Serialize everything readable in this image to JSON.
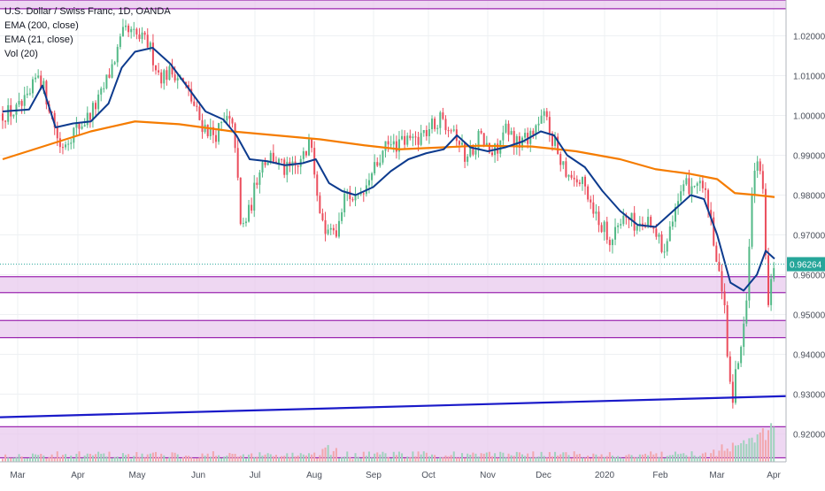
{
  "legend": {
    "title": "U.S. Dollar / Swiss Franc, 1D, OANDA",
    "ema200": "EMA (200, close)",
    "ema21": "EMA (21, close)",
    "vol": "Vol (20)"
  },
  "colors": {
    "up": "#53b987",
    "down": "#eb4d5c",
    "vol_up": "#9fd3bd",
    "vol_down": "#f2a7ae",
    "ema200": "#f57c00",
    "ema21": "#0d3b8e",
    "trendline": "#1a1ac9",
    "zone_fill": "#e8c9ee",
    "zone_border": "#9c27b0",
    "price_label_bg": "#26a69a",
    "grid": "#eef0f3",
    "axis_text": "#4a4f5a"
  },
  "chart_data": {
    "type": "candlestick",
    "title": "U.S. Dollar / Swiss Franc, 1D, OANDA",
    "current_price": "0.96264",
    "ylim": [
      0.913,
      1.029
    ],
    "y_ticks": [
      0.92,
      0.93,
      0.94,
      0.95,
      0.96,
      0.97,
      0.98,
      0.99,
      1.0,
      1.01,
      1.02
    ],
    "y_tick_labels": [
      "0.92000",
      "0.93000",
      "0.94000",
      "0.95000",
      "0.96000",
      "0.97000",
      "0.98000",
      "0.99000",
      "1.00000",
      "1.01000",
      "1.02000"
    ],
    "x_tick_labels": [
      "Mar",
      "Apr",
      "May",
      "Jun",
      "Jul",
      "Aug",
      "Sep",
      "Oct",
      "Nov",
      "Dec",
      "2020",
      "Feb",
      "Mar",
      "Apr"
    ],
    "grid": true,
    "zones": [
      {
        "low": 1.0268,
        "high": 1.029
      },
      {
        "low": 0.9555,
        "high": 0.9595
      },
      {
        "low": 0.9442,
        "high": 0.9485
      },
      {
        "low": 0.914,
        "high": 0.9218
      }
    ],
    "trendline": {
      "start": 0.9242,
      "end": 0.9295
    },
    "ema200": [
      [
        0,
        0.989
      ],
      [
        50,
        0.9925
      ],
      [
        100,
        0.996
      ],
      [
        150,
        0.9985
      ],
      [
        200,
        0.9978
      ],
      [
        260,
        0.996
      ],
      [
        310,
        0.995
      ],
      [
        360,
        0.994
      ],
      [
        410,
        0.9925
      ],
      [
        450,
        0.9915
      ],
      [
        500,
        0.992
      ],
      [
        540,
        0.9924
      ],
      [
        600,
        0.9922
      ],
      [
        650,
        0.991
      ],
      [
        700,
        0.989
      ],
      [
        740,
        0.9865
      ],
      [
        780,
        0.9853
      ],
      [
        810,
        0.984
      ],
      [
        830,
        0.9805
      ],
      [
        855,
        0.98
      ],
      [
        875,
        0.9795
      ]
    ],
    "ema21": [
      [
        0,
        1.001
      ],
      [
        30,
        1.0015
      ],
      [
        45,
        1.0075
      ],
      [
        60,
        0.997
      ],
      [
        80,
        0.998
      ],
      [
        100,
        0.9985
      ],
      [
        120,
        1.003
      ],
      [
        135,
        1.012
      ],
      [
        150,
        1.016
      ],
      [
        170,
        1.017
      ],
      [
        190,
        1.013
      ],
      [
        210,
        1.007
      ],
      [
        230,
        1.001
      ],
      [
        250,
        0.999
      ],
      [
        265,
        0.995
      ],
      [
        280,
        0.989
      ],
      [
        300,
        0.9885
      ],
      [
        320,
        0.9875
      ],
      [
        340,
        0.988
      ],
      [
        355,
        0.989
      ],
      [
        370,
        0.983
      ],
      [
        385,
        0.981
      ],
      [
        400,
        0.98
      ],
      [
        420,
        0.982
      ],
      [
        440,
        0.986
      ],
      [
        460,
        0.989
      ],
      [
        480,
        0.9905
      ],
      [
        500,
        0.9915
      ],
      [
        515,
        0.995
      ],
      [
        530,
        0.992
      ],
      [
        550,
        0.991
      ],
      [
        570,
        0.992
      ],
      [
        590,
        0.9935
      ],
      [
        610,
        0.996
      ],
      [
        625,
        0.995
      ],
      [
        640,
        0.99
      ],
      [
        660,
        0.987
      ],
      [
        680,
        0.981
      ],
      [
        700,
        0.976
      ],
      [
        720,
        0.9725
      ],
      [
        740,
        0.972
      ],
      [
        760,
        0.976
      ],
      [
        780,
        0.98
      ],
      [
        795,
        0.979
      ],
      [
        810,
        0.97
      ],
      [
        825,
        0.958
      ],
      [
        840,
        0.956
      ],
      [
        855,
        0.96
      ],
      [
        865,
        0.966
      ],
      [
        875,
        0.964
      ]
    ],
    "candles_note": "daily OHLC bars from Mar 2019 to Mar 2020",
    "price_path": [
      [
        0,
        1.0005
      ],
      [
        15,
        1.001
      ],
      [
        30,
        1.004
      ],
      [
        40,
        1.011
      ],
      [
        55,
        1.001
      ],
      [
        65,
        0.992
      ],
      [
        80,
        0.996
      ],
      [
        95,
        0.999
      ],
      [
        110,
        1.004
      ],
      [
        125,
        1.013
      ],
      [
        138,
        1.021
      ],
      [
        150,
        1.02
      ],
      [
        165,
        1.018
      ],
      [
        178,
        1.01
      ],
      [
        195,
        1.011
      ],
      [
        210,
        1.006
      ],
      [
        225,
        0.998
      ],
      [
        240,
        0.995
      ],
      [
        255,
        0.999
      ],
      [
        263,
        0.995
      ],
      [
        270,
        0.971
      ],
      [
        280,
        0.976
      ],
      [
        292,
        0.988
      ],
      [
        305,
        0.99
      ],
      [
        320,
        0.986
      ],
      [
        335,
        0.987
      ],
      [
        350,
        0.993
      ],
      [
        362,
        0.972
      ],
      [
        375,
        0.969
      ],
      [
        390,
        0.981
      ],
      [
        405,
        0.978
      ],
      [
        420,
        0.986
      ],
      [
        435,
        0.992
      ],
      [
        450,
        0.993
      ],
      [
        465,
        0.994
      ],
      [
        480,
        0.996
      ],
      [
        495,
        0.999
      ],
      [
        510,
        0.998
      ],
      [
        525,
        0.989
      ],
      [
        540,
        0.995
      ],
      [
        555,
        0.99
      ],
      [
        570,
        0.996
      ],
      [
        585,
        0.993
      ],
      [
        600,
        0.996
      ],
      [
        615,
        1.0
      ],
      [
        625,
        0.993
      ],
      [
        640,
        0.986
      ],
      [
        660,
        0.982
      ],
      [
        675,
        0.974
      ],
      [
        690,
        0.969
      ],
      [
        705,
        0.975
      ],
      [
        720,
        0.972
      ],
      [
        735,
        0.974
      ],
      [
        748,
        0.966
      ],
      [
        760,
        0.976
      ],
      [
        775,
        0.982
      ],
      [
        790,
        0.984
      ],
      [
        800,
        0.977
      ],
      [
        808,
        0.964
      ],
      [
        818,
        0.952
      ],
      [
        826,
        0.927
      ],
      [
        834,
        0.94
      ],
      [
        842,
        0.948
      ],
      [
        850,
        0.985
      ],
      [
        856,
        0.988
      ],
      [
        862,
        0.98
      ],
      [
        868,
        0.952
      ],
      [
        875,
        0.9626
      ]
    ]
  }
}
